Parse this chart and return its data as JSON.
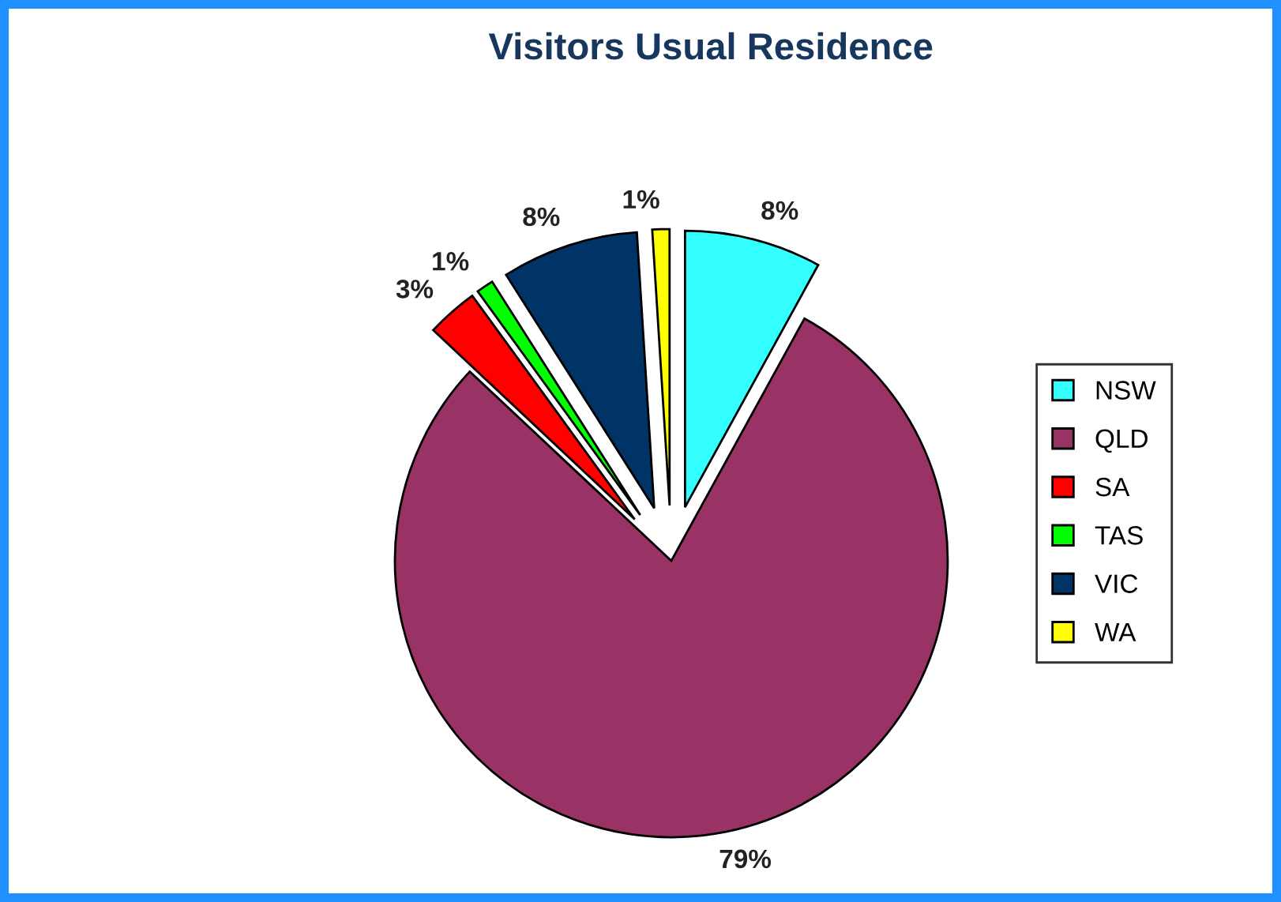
{
  "chart_data": {
    "type": "pie",
    "title": "Visitors Usual Residence",
    "categories": [
      "NSW",
      "QLD",
      "SA",
      "TAS",
      "VIC",
      "WA"
    ],
    "values": [
      8,
      79,
      3,
      1,
      8,
      1
    ],
    "value_labels": [
      "8%",
      "79%",
      "3%",
      "1%",
      "8%",
      "1%"
    ],
    "colors": [
      "#33ffff",
      "#993366",
      "#ff0000",
      "#00ff00",
      "#003366",
      "#ffff00"
    ],
    "legend": "right"
  }
}
